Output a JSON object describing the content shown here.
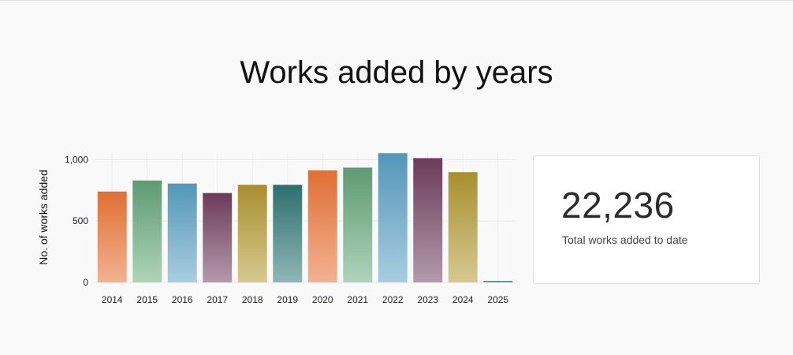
{
  "page": {
    "title": "Works added by years"
  },
  "stat": {
    "value": "22,236",
    "label": "Total works added to date"
  },
  "chart_data": {
    "type": "bar",
    "title": "",
    "xlabel": "",
    "ylabel": "No. of works added",
    "categories": [
      "2014",
      "2015",
      "2016",
      "2017",
      "2018",
      "2019",
      "2020",
      "2021",
      "2022",
      "2023",
      "2024",
      "2025"
    ],
    "values": [
      740,
      830,
      805,
      728,
      795,
      795,
      912,
      935,
      1052,
      1012,
      898,
      12
    ],
    "ylim": [
      0,
      1060
    ],
    "yticks": [
      0,
      500,
      1000
    ],
    "ytick_labels": [
      "0",
      "500",
      "1,000"
    ],
    "grid": true,
    "legend": "none",
    "bar_colors": [
      [
        "#e06f33",
        "#f2b292"
      ],
      [
        "#5e9a72",
        "#aed4b8"
      ],
      [
        "#5596b8",
        "#a8cde0"
      ],
      [
        "#6b3b58",
        "#b39aab"
      ],
      [
        "#a88f30",
        "#d6c990"
      ],
      [
        "#2f6e6e",
        "#8fb7b5"
      ],
      [
        "#e06f33",
        "#f2b292"
      ],
      [
        "#5e9a72",
        "#aed4b8"
      ],
      [
        "#5596b8",
        "#a8cde0"
      ],
      [
        "#6b3b58",
        "#b39aab"
      ],
      [
        "#a88f30",
        "#d6c990"
      ],
      [
        "#2f6e6e",
        "#8fb7b5"
      ]
    ]
  }
}
